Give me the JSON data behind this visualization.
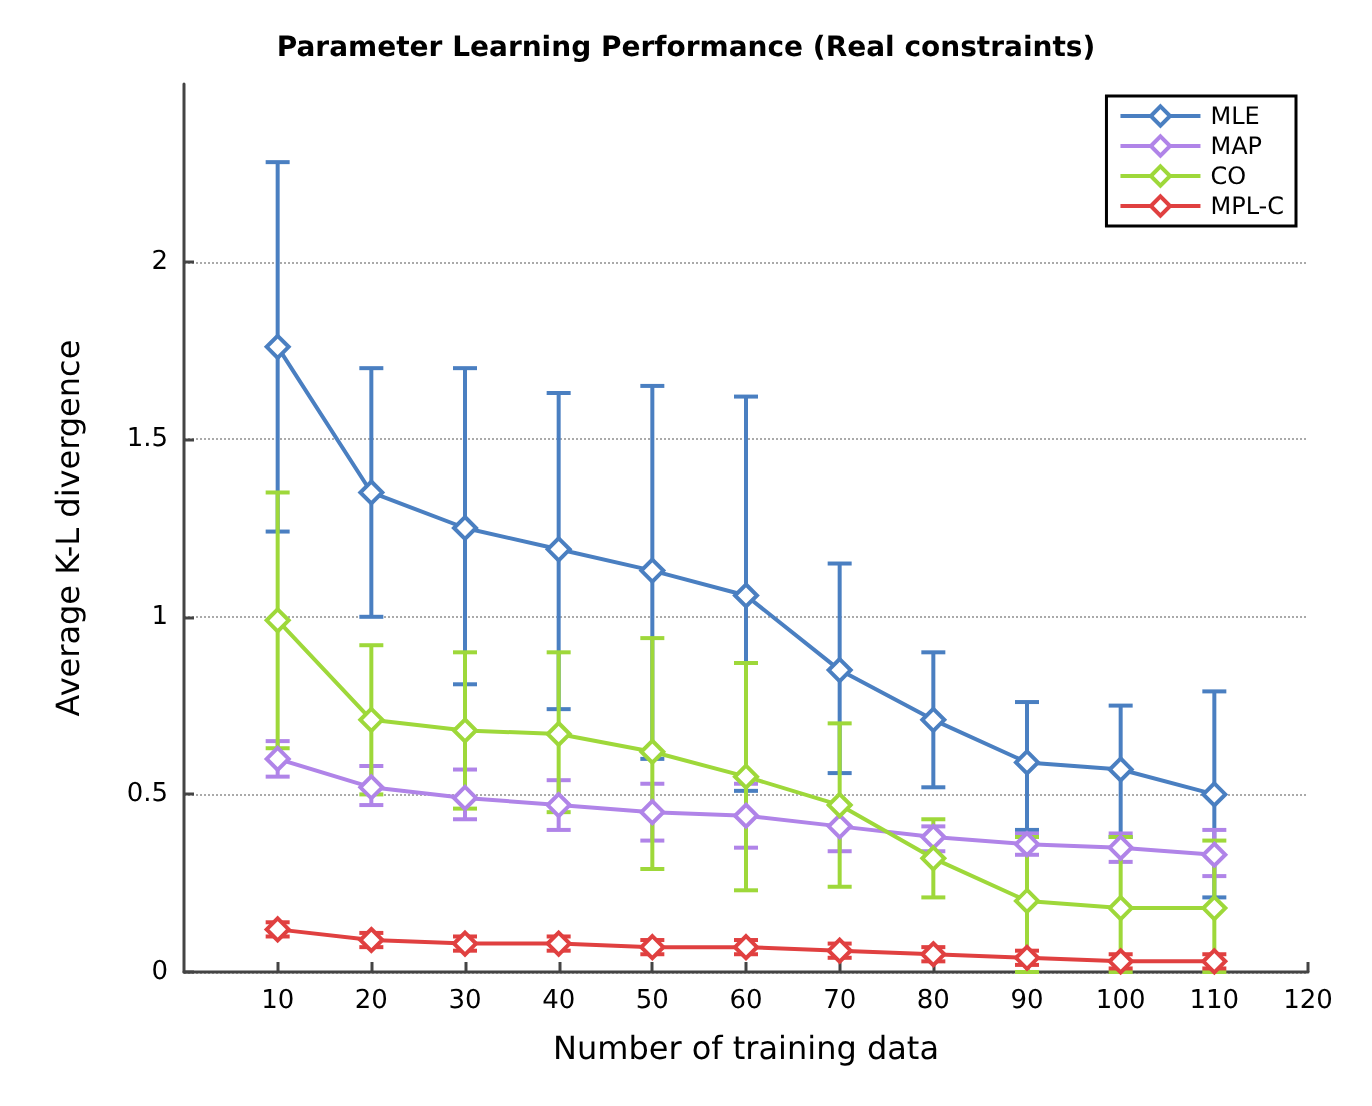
{
  "chart_data": {
    "type": "line",
    "title": "Parameter Learning Performance (Real constraints)",
    "xlabel": "Number of training data",
    "ylabel": "Average K-L divergence",
    "x": [
      10,
      20,
      30,
      40,
      50,
      60,
      70,
      80,
      90,
      100,
      110
    ],
    "xlim": [
      0,
      120
    ],
    "xticks": [
      10,
      20,
      30,
      40,
      50,
      60,
      70,
      80,
      90,
      100,
      110,
      120
    ],
    "ylim": [
      0,
      2.5
    ],
    "yticks": [
      0,
      0.5,
      1,
      1.5,
      2
    ],
    "grid": "y",
    "legend": "top right",
    "marker": "diamond",
    "line_style": "solid",
    "series": [
      {
        "name": "MLE",
        "color": "#4a7fc1",
        "values": [
          1.76,
          1.35,
          1.25,
          1.19,
          1.13,
          1.06,
          0.85,
          0.71,
          0.59,
          0.57,
          0.5
        ],
        "errors": [
          [
            1.24,
            2.28
          ],
          [
            1.0,
            1.7
          ],
          [
            0.81,
            1.7
          ],
          [
            0.74,
            1.63
          ],
          [
            0.6,
            1.65
          ],
          [
            0.51,
            1.62
          ],
          [
            0.56,
            1.15
          ],
          [
            0.52,
            0.9
          ],
          [
            0.4,
            0.76
          ],
          [
            0.38,
            0.75
          ],
          [
            0.21,
            0.79
          ]
        ]
      },
      {
        "name": "MAP",
        "color": "#b084e8",
        "values": [
          0.6,
          0.52,
          0.49,
          0.47,
          0.45,
          0.44,
          0.41,
          0.38,
          0.36,
          0.35,
          0.33
        ],
        "errors": [
          [
            0.55,
            0.65
          ],
          [
            0.47,
            0.58
          ],
          [
            0.43,
            0.57
          ],
          [
            0.4,
            0.54
          ],
          [
            0.37,
            0.53
          ],
          [
            0.35,
            0.53
          ],
          [
            0.34,
            0.47
          ],
          [
            0.34,
            0.41
          ],
          [
            0.33,
            0.39
          ],
          [
            0.31,
            0.39
          ],
          [
            0.27,
            0.4
          ]
        ]
      },
      {
        "name": "CO",
        "color": "#9ed83a",
        "values": [
          0.99,
          0.71,
          0.68,
          0.67,
          0.62,
          0.55,
          0.47,
          0.32,
          0.2,
          0.18,
          0.18
        ],
        "errors": [
          [
            0.63,
            1.35
          ],
          [
            0.5,
            0.92
          ],
          [
            0.46,
            0.9
          ],
          [
            0.45,
            0.9
          ],
          [
            0.29,
            0.94
          ],
          [
            0.23,
            0.87
          ],
          [
            0.24,
            0.7
          ],
          [
            0.21,
            0.43
          ],
          [
            0.0,
            0.38
          ],
          [
            0.0,
            0.38
          ],
          [
            0.0,
            0.37
          ]
        ]
      },
      {
        "name": "MPL-C",
        "color": "#e04040",
        "values": [
          0.12,
          0.09,
          0.08,
          0.08,
          0.07,
          0.07,
          0.06,
          0.05,
          0.04,
          0.03,
          0.03
        ],
        "errors": [
          0.02,
          0.02,
          0.02,
          0.02,
          0.02,
          0.02,
          0.02,
          0.02,
          0.02,
          0.02,
          0.02
        ]
      }
    ]
  }
}
